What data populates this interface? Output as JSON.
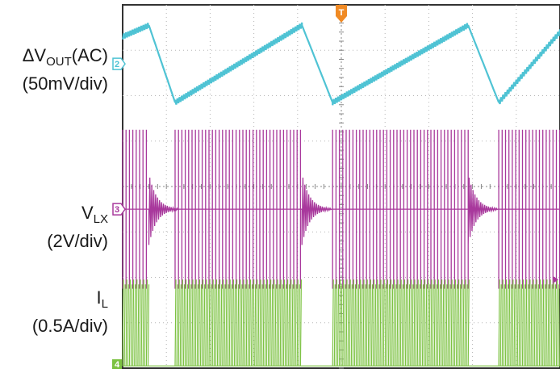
{
  "chart_data": {
    "type": "line",
    "title": "",
    "grid": true,
    "divisions": {
      "x": 10,
      "y": 8
    },
    "trigger_marker": "T",
    "series": [
      {
        "channel": "2",
        "name_parts": [
          "ΔV",
          "OUT",
          "(AC)"
        ],
        "scale": "(50mV/div)",
        "color": "#4fc3d4",
        "waveform": "sawtooth ripple",
        "center_div": 6.7,
        "peak_to_peak_div": 1.7,
        "peaks_x_div": [
          0.6,
          4.1,
          7.9
        ],
        "valleys_x_div": [
          1.2,
          4.8,
          8.6
        ]
      },
      {
        "channel": "3",
        "name_parts": [
          "V",
          "LX",
          ""
        ],
        "scale": "(2V/div)",
        "color": "#a8389c",
        "waveform": "switching bursts",
        "center_div": 3.5,
        "amplitude_div": 1.75,
        "bursts_x_div": [
          [
            0.0,
            0.6
          ],
          [
            1.2,
            4.1
          ],
          [
            4.8,
            7.9
          ],
          [
            8.6,
            10.0
          ]
        ]
      },
      {
        "channel": "4",
        "name_parts": [
          "I",
          "L",
          ""
        ],
        "scale": "(0.5A/div)",
        "color": "#7cc242",
        "waveform": "inductor current bursts",
        "baseline_div": 0.0,
        "amplitude_div": 1.95,
        "bursts_x_div": [
          [
            0.0,
            0.6
          ],
          [
            1.2,
            4.1
          ],
          [
            4.8,
            7.9
          ],
          [
            8.6,
            10.0
          ]
        ]
      }
    ]
  }
}
